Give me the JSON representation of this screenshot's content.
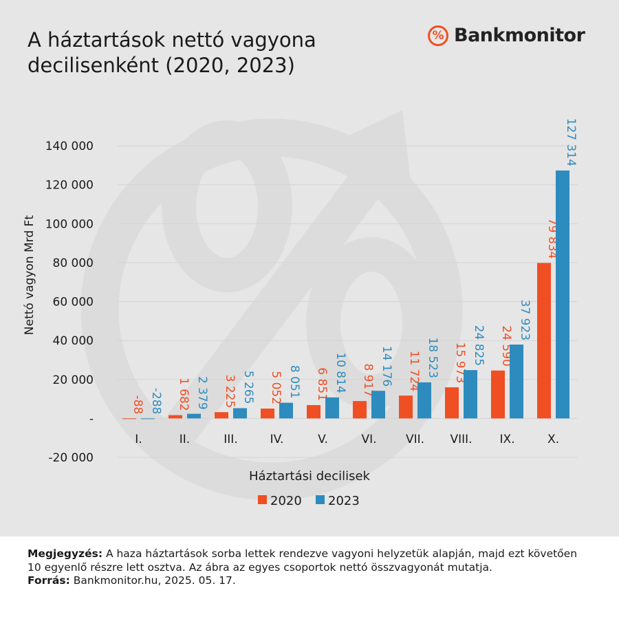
{
  "header": {
    "title_line1": "A háztartások nettó vagyona",
    "title_line2": "decilisenként (2020, 2023)"
  },
  "brand": {
    "logo_symbol": "%",
    "logo_text": "Bankmonitor"
  },
  "footer": {
    "note_label": "Megjegyzés:",
    "note_text": "A haza háztartások sorba lettek rendezve vagyoni helyzetük alapján, majd ezt követően 10 egyenlő részre lett osztva. Az ábra az egyes csoportok nettó összvagyonát mutatja.",
    "source_label": "Forrás:",
    "source_text": "Bankmonitor.hu, 2025. 05. 17."
  },
  "colors": {
    "series_2020": "#f04e23",
    "series_2023": "#2e8bbd",
    "background": "#e6e6e6"
  },
  "chart_data": {
    "type": "bar",
    "xlabel": "Háztartási decilisek",
    "ylabel": "Nettó vagyon Mrd Ft",
    "ylim": [
      -20000,
      140000
    ],
    "yticks": [
      {
        "value": 140000,
        "label": "140 000"
      },
      {
        "value": 120000,
        "label": "120 000"
      },
      {
        "value": 100000,
        "label": "100 000"
      },
      {
        "value": 80000,
        "label": "80 000"
      },
      {
        "value": 60000,
        "label": "60 000"
      },
      {
        "value": 40000,
        "label": "40 000"
      },
      {
        "value": 20000,
        "label": "20 000"
      },
      {
        "value": 0,
        "label": "-"
      },
      {
        "value": -20000,
        "label": "-20 000"
      }
    ],
    "categories": [
      "I.",
      "II.",
      "III.",
      "IV.",
      "V.",
      "VI.",
      "VII.",
      "VIII.",
      "IX.",
      "X."
    ],
    "series": [
      {
        "name": "2020",
        "color": "#f04e23",
        "values": [
          -88,
          1682,
          3225,
          5052,
          6851,
          8917,
          11724,
          15973,
          24590,
          79834
        ],
        "labels": [
          "-88",
          "1 682",
          "3 225",
          "5 052",
          "6 851",
          "8 917",
          "11 724",
          "15 973",
          "24 590",
          "79 834"
        ]
      },
      {
        "name": "2023",
        "color": "#2e8bbd",
        "values": [
          -288,
          2379,
          5265,
          8051,
          10814,
          14176,
          18523,
          24825,
          37923,
          127314
        ],
        "labels": [
          "-288",
          "2 379",
          "5 265",
          "8 051",
          "10 814",
          "14 176",
          "18 523",
          "24 825",
          "37 923",
          "127 314"
        ]
      }
    ],
    "legend_position": "bottom-center",
    "grid": true
  }
}
